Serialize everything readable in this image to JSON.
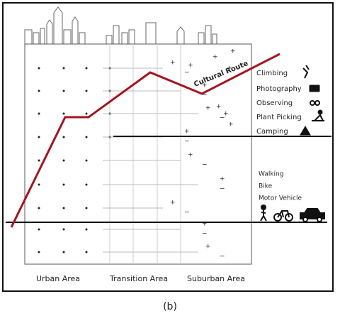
{
  "diagram": {
    "route_label": "Cultural Route",
    "activities": [
      "Climbing",
      "Photography",
      "Observing",
      "Plant Picking",
      "Camping"
    ],
    "transport": [
      "Walking",
      "Bike",
      "Motor Vehicle"
    ],
    "areas": [
      "Urban Area",
      "Transition Area",
      "Suburban Area"
    ]
  },
  "caption": "(b)"
}
